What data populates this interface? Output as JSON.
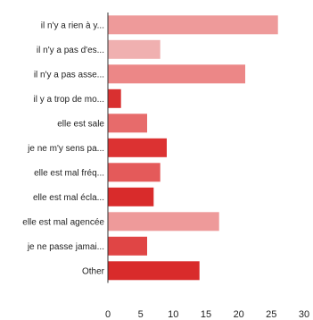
{
  "chart_data": {
    "type": "bar",
    "orientation": "horizontal",
    "categories": [
      "il n'y a rien à y...",
      "il n'y a pas d'es...",
      "il n'y a pas asse...",
      "il y a trop de mo...",
      "elle est sale",
      "je ne m'y sens pa...",
      "elle est mal fréq...",
      "elle est mal écla...",
      "elle est mal agencée",
      "je ne passe jamai...",
      "Other"
    ],
    "values": [
      26,
      8,
      21,
      2,
      6,
      9,
      8,
      7,
      17,
      6,
      14
    ],
    "colors": [
      "#ee9a9a",
      "#f0b0b0",
      "#ec8787",
      "#d93030",
      "#e76b6b",
      "#dc3232",
      "#e45a5a",
      "#d92b2b",
      "#ee9a9a",
      "#e04545",
      "#d92b2b"
    ],
    "xlim": [
      0,
      30
    ],
    "xticks": [
      "0",
      "5",
      "10",
      "15",
      "20",
      "25",
      "30"
    ],
    "grid": false,
    "title": "",
    "xlabel": "",
    "ylabel": ""
  }
}
